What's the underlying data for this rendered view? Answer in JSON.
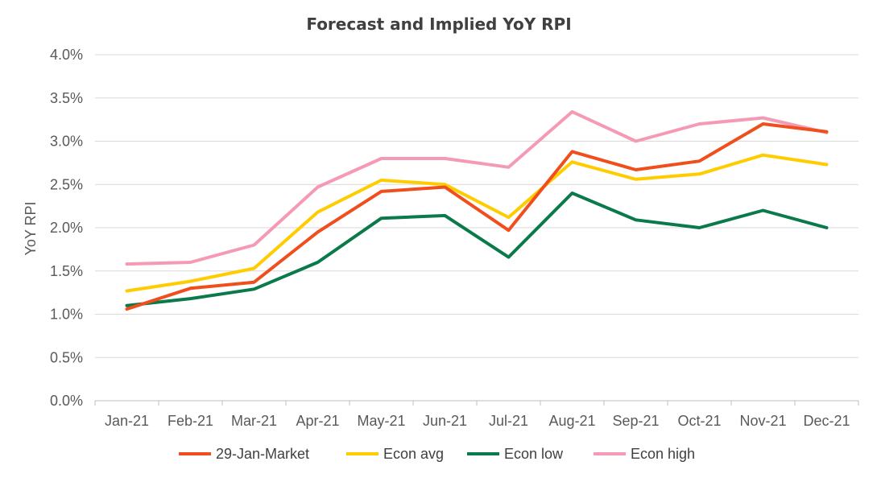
{
  "chart_data": {
    "type": "line",
    "title": "Forecast and Implied YoY RPI",
    "xlabel": "",
    "ylabel": "YoY RPI",
    "ylim": [
      0,
      4.0
    ],
    "yticks": [
      "0.0%",
      "0.5%",
      "1.0%",
      "1.5%",
      "2.0%",
      "2.5%",
      "3.0%",
      "3.5%",
      "4.0%"
    ],
    "grid": "horizontal",
    "legend_position": "bottom",
    "categories": [
      "Jan-21",
      "Feb-21",
      "Mar-21",
      "Apr-21",
      "May-21",
      "Jun-21",
      "Jul-21",
      "Aug-21",
      "Sep-21",
      "Oct-21",
      "Nov-21",
      "Dec-21"
    ],
    "series": [
      {
        "name": "Econ high",
        "color": "#F59AB4",
        "values": [
          1.58,
          1.6,
          1.8,
          2.47,
          2.8,
          2.8,
          2.7,
          3.34,
          3.0,
          3.2,
          3.27,
          3.1
        ]
      },
      {
        "name": "Econ avg",
        "color": "#FFCC00",
        "values": [
          1.27,
          1.38,
          1.53,
          2.18,
          2.55,
          2.5,
          2.12,
          2.76,
          2.56,
          2.62,
          2.84,
          2.73
        ]
      },
      {
        "name": "Econ low",
        "color": "#0A7A4A",
        "values": [
          1.1,
          1.18,
          1.29,
          1.6,
          2.11,
          2.14,
          1.66,
          2.4,
          2.09,
          2.0,
          2.2,
          2.0
        ]
      },
      {
        "name": "29-Jan-Market",
        "color": "#F04E1C",
        "values": [
          1.06,
          1.3,
          1.37,
          1.95,
          2.42,
          2.47,
          1.97,
          2.88,
          2.67,
          2.77,
          3.2,
          3.11
        ]
      }
    ],
    "legend_order": [
      "29-Jan-Market",
      "Econ avg",
      "Econ low",
      "Econ high"
    ]
  }
}
